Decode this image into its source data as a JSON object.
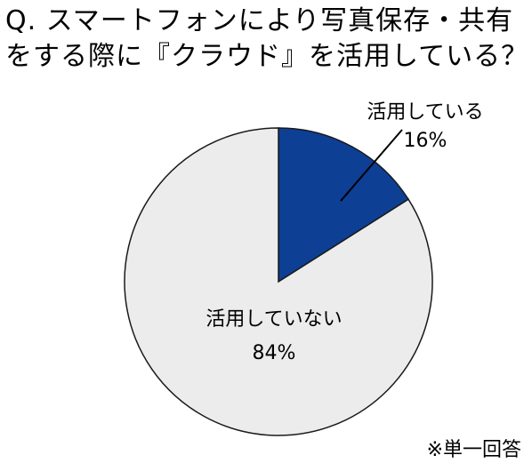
{
  "title": {
    "line1": "Q. スマートフォンにより写真保存・共有",
    "line2": "をする際に『クラウド』を活用している？"
  },
  "note": "※単一回答",
  "chart_data": {
    "type": "pie",
    "start_angle_deg": 0,
    "direction": "clockwise",
    "slices": [
      {
        "label": "活用している",
        "value": 16,
        "value_label": "16%",
        "color": "#0d3f95"
      },
      {
        "label": "活用していない",
        "value": 84,
        "value_label": "84%",
        "color": "#ececec"
      }
    ],
    "outline_color": "#1a1a1a",
    "legend": "none",
    "label_position": "slice 1 outside with leader line, slice 2 inside"
  }
}
